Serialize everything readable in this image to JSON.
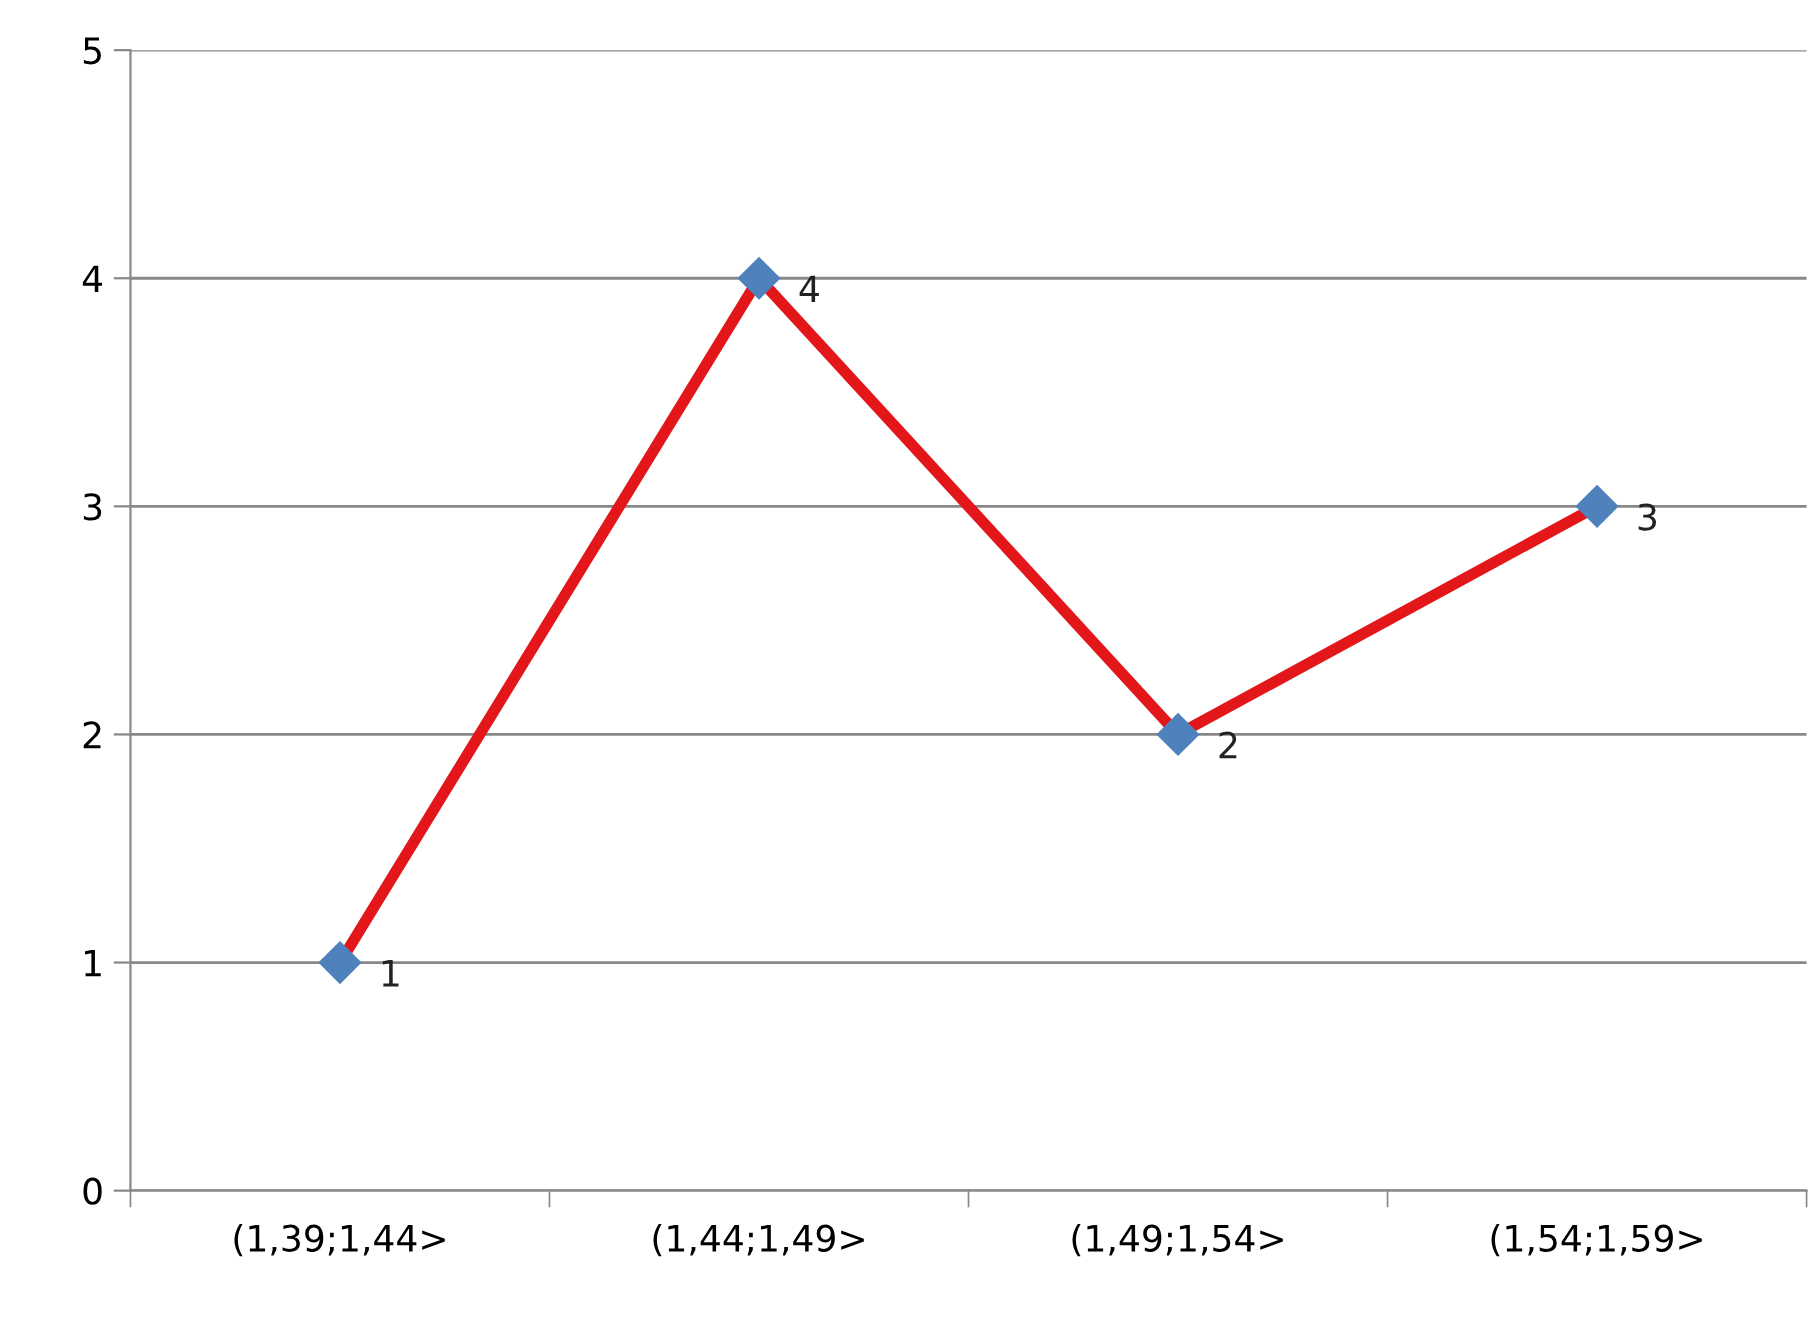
{
  "chart_data": {
    "type": "line",
    "categories": [
      "(1,39;1,44>",
      "(1,44;1,49>",
      "(1,49;1,54>",
      "(1,54;1,59>"
    ],
    "series": [
      {
        "color": "#e3161a",
        "colors": [
          "#4f81bd",
          "#4f81bd",
          "#4f81bd",
          "#4f81bd"
        ],
        "values": [
          1,
          4,
          2,
          3
        ]
      }
    ],
    "ylim": [
      0,
      5
    ],
    "yticks": [
      0,
      1,
      2,
      3,
      4,
      5
    ],
    "grid": "y",
    "legend": false,
    "marker": "diamond",
    "line_style": "solid",
    "data_labels": true
  }
}
